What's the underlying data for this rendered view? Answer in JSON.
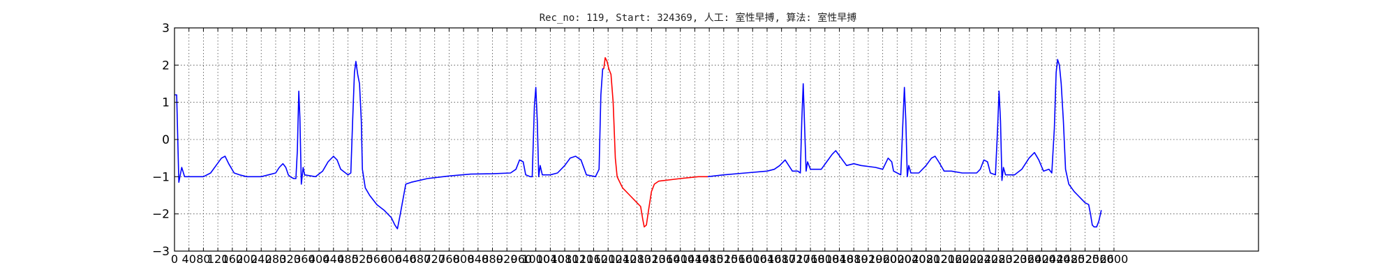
{
  "chart_data": {
    "type": "line",
    "title": "Rec_no: 119, Start: 324369, 人工: 室性早搏, 算法: 室性早搏",
    "xlabel": "",
    "ylabel": "",
    "xlim": [
      0,
      3000
    ],
    "ylim": [
      -3,
      3
    ],
    "grid": true,
    "legend": "none",
    "yticks": [
      -3,
      -2,
      -1,
      0,
      1,
      2,
      3
    ],
    "yticks_labels": [
      "−3",
      "−2",
      "−1",
      "0",
      "1",
      "2",
      "3"
    ],
    "xtick_interval": 40,
    "xticks_labels": [
      "0",
      "40",
      "80",
      "120",
      "160",
      "200",
      "240",
      "280",
      "320",
      "360",
      "400",
      "440",
      "480",
      "520",
      "560",
      "600",
      "640",
      "680",
      "720",
      "760",
      "800",
      "840",
      "880",
      "920",
      "960",
      "1000",
      "1040",
      "1080",
      "1120",
      "1160",
      "1200",
      "1240",
      "1280",
      "1320",
      "1360",
      "1400",
      "1440",
      "1480",
      "1520",
      "1560",
      "1600",
      "1640",
      "1680",
      "1720",
      "1760",
      "1800",
      "1840",
      "1880",
      "1920",
      "1960",
      "2000",
      "2040",
      "2080",
      "2120",
      "2160",
      "2200",
      "2240",
      "2280",
      "2320",
      "2360",
      "2400",
      "2440",
      "2480",
      "2520",
      "2560",
      "2600"
    ],
    "series": [
      {
        "color": "#0000ff",
        "points": [
          [
            0,
            1.2
          ],
          [
            6,
            1.2
          ],
          [
            12,
            -1.15
          ],
          [
            20,
            -0.75
          ],
          [
            28,
            -1.0
          ],
          [
            60,
            -1.0
          ],
          [
            80,
            -1.0
          ],
          [
            100,
            -0.9
          ],
          [
            115,
            -0.7
          ],
          [
            130,
            -0.5
          ],
          [
            140,
            -0.45
          ],
          [
            150,
            -0.65
          ],
          [
            165,
            -0.9
          ],
          [
            180,
            -0.95
          ],
          [
            200,
            -1.0
          ],
          [
            240,
            -1.0
          ],
          [
            260,
            -0.95
          ],
          [
            280,
            -0.9
          ],
          [
            290,
            -0.75
          ],
          [
            300,
            -0.65
          ],
          [
            308,
            -0.75
          ],
          [
            315,
            -0.95
          ],
          [
            320,
            -1.0
          ],
          [
            330,
            -1.05
          ],
          [
            336,
            -1.05
          ],
          [
            340,
            -0.3
          ],
          [
            344,
            1.3
          ],
          [
            347,
            0.6
          ],
          [
            351,
            -1.2
          ],
          [
            356,
            -0.75
          ],
          [
            360,
            -0.95
          ],
          [
            390,
            -1.0
          ],
          [
            410,
            -0.85
          ],
          [
            425,
            -0.6
          ],
          [
            440,
            -0.45
          ],
          [
            450,
            -0.55
          ],
          [
            460,
            -0.8
          ],
          [
            480,
            -0.95
          ],
          [
            488,
            -0.9
          ],
          [
            493,
            0.5
          ],
          [
            498,
            1.8
          ],
          [
            502,
            2.1
          ],
          [
            507,
            1.75
          ],
          [
            512,
            1.5
          ],
          [
            517,
            0.5
          ],
          [
            520,
            -0.8
          ],
          [
            528,
            -1.3
          ],
          [
            540,
            -1.5
          ],
          [
            560,
            -1.75
          ],
          [
            580,
            -1.9
          ],
          [
            600,
            -2.1
          ],
          [
            610,
            -2.3
          ],
          [
            617,
            -2.4
          ],
          [
            625,
            -2.0
          ],
          [
            640,
            -1.2
          ],
          [
            655,
            -1.15
          ],
          [
            700,
            -1.05
          ],
          [
            760,
            -0.98
          ],
          [
            820,
            -0.93
          ],
          [
            880,
            -0.92
          ],
          [
            930,
            -0.9
          ],
          [
            945,
            -0.8
          ],
          [
            955,
            -0.55
          ],
          [
            965,
            -0.6
          ],
          [
            972,
            -0.95
          ],
          [
            985,
            -1.0
          ],
          [
            990,
            -1.0
          ],
          [
            996,
            0.9
          ],
          [
            1000,
            1.4
          ],
          [
            1004,
            0.5
          ],
          [
            1008,
            -1.0
          ],
          [
            1012,
            -0.7
          ],
          [
            1018,
            -0.95
          ],
          [
            1040,
            -0.95
          ],
          [
            1060,
            -0.9
          ],
          [
            1080,
            -0.7
          ],
          [
            1095,
            -0.5
          ],
          [
            1110,
            -0.45
          ],
          [
            1125,
            -0.55
          ],
          [
            1140,
            -0.95
          ],
          [
            1165,
            -1.0
          ],
          [
            1175,
            -0.8
          ],
          [
            1180,
            1.2
          ],
          [
            1185,
            1.9
          ],
          [
            1188,
            1.9
          ]
        ]
      },
      {
        "color": "#ff0000",
        "points": [
          [
            1188,
            1.9
          ],
          [
            1192,
            2.2
          ],
          [
            1197,
            2.1
          ],
          [
            1202,
            1.9
          ],
          [
            1208,
            1.75
          ],
          [
            1214,
            1.0
          ],
          [
            1220,
            -0.5
          ],
          [
            1225,
            -1.0
          ],
          [
            1240,
            -1.3
          ],
          [
            1260,
            -1.5
          ],
          [
            1280,
            -1.7
          ],
          [
            1290,
            -1.8
          ],
          [
            1296,
            -2.15
          ],
          [
            1300,
            -2.35
          ],
          [
            1306,
            -2.3
          ],
          [
            1312,
            -1.9
          ],
          [
            1320,
            -1.4
          ],
          [
            1328,
            -1.2
          ],
          [
            1340,
            -1.12
          ],
          [
            1400,
            -1.05
          ],
          [
            1450,
            -1.0
          ],
          [
            1476,
            -1.0
          ]
        ]
      },
      {
        "color": "#0000ff",
        "points": [
          [
            1476,
            -1.0
          ],
          [
            1520,
            -0.95
          ],
          [
            1580,
            -0.9
          ],
          [
            1640,
            -0.85
          ],
          [
            1660,
            -0.8
          ],
          [
            1675,
            -0.7
          ],
          [
            1690,
            -0.55
          ],
          [
            1700,
            -0.7
          ],
          [
            1710,
            -0.85
          ],
          [
            1725,
            -0.85
          ],
          [
            1732,
            -0.9
          ],
          [
            1736,
            0.5
          ],
          [
            1740,
            1.5
          ],
          [
            1744,
            0.3
          ],
          [
            1748,
            -0.85
          ],
          [
            1752,
            -0.6
          ],
          [
            1760,
            -0.8
          ],
          [
            1790,
            -0.8
          ],
          [
            1805,
            -0.6
          ],
          [
            1820,
            -0.4
          ],
          [
            1830,
            -0.3
          ],
          [
            1845,
            -0.5
          ],
          [
            1860,
            -0.7
          ],
          [
            1880,
            -0.65
          ],
          [
            1900,
            -0.7
          ],
          [
            1940,
            -0.75
          ],
          [
            1960,
            -0.8
          ],
          [
            1975,
            -0.5
          ],
          [
            1985,
            -0.6
          ],
          [
            1990,
            -0.85
          ],
          [
            2000,
            -0.9
          ],
          [
            2010,
            -0.95
          ],
          [
            2016,
            0.5
          ],
          [
            2020,
            1.4
          ],
          [
            2024,
            0.5
          ],
          [
            2028,
            -1.0
          ],
          [
            2032,
            -0.7
          ],
          [
            2038,
            -0.9
          ],
          [
            2060,
            -0.9
          ],
          [
            2080,
            -0.7
          ],
          [
            2095,
            -0.5
          ],
          [
            2105,
            -0.45
          ],
          [
            2115,
            -0.6
          ],
          [
            2130,
            -0.85
          ],
          [
            2150,
            -0.85
          ],
          [
            2180,
            -0.9
          ],
          [
            2220,
            -0.9
          ],
          [
            2230,
            -0.8
          ],
          [
            2240,
            -0.55
          ],
          [
            2250,
            -0.6
          ],
          [
            2258,
            -0.9
          ],
          [
            2272,
            -0.95
          ],
          [
            2278,
            0.3
          ],
          [
            2282,
            1.3
          ],
          [
            2286,
            0.5
          ],
          [
            2290,
            -1.1
          ],
          [
            2294,
            -0.75
          ],
          [
            2300,
            -0.95
          ],
          [
            2325,
            -0.95
          ],
          [
            2345,
            -0.8
          ],
          [
            2365,
            -0.5
          ],
          [
            2380,
            -0.35
          ],
          [
            2392,
            -0.55
          ],
          [
            2405,
            -0.85
          ],
          [
            2420,
            -0.8
          ],
          [
            2428,
            -0.9
          ],
          [
            2435,
            0.3
          ],
          [
            2440,
            1.8
          ],
          [
            2444,
            2.15
          ],
          [
            2449,
            2.0
          ],
          [
            2454,
            1.5
          ],
          [
            2460,
            0.5
          ],
          [
            2466,
            -0.8
          ],
          [
            2475,
            -1.2
          ],
          [
            2490,
            -1.4
          ],
          [
            2500,
            -1.5
          ],
          [
            2510,
            -1.6
          ],
          [
            2520,
            -1.7
          ],
          [
            2530,
            -1.75
          ],
          [
            2535,
            -2.0
          ],
          [
            2540,
            -2.3
          ],
          [
            2545,
            -2.35
          ],
          [
            2552,
            -2.35
          ],
          [
            2558,
            -2.2
          ],
          [
            2565,
            -1.9
          ]
        ]
      }
    ]
  }
}
